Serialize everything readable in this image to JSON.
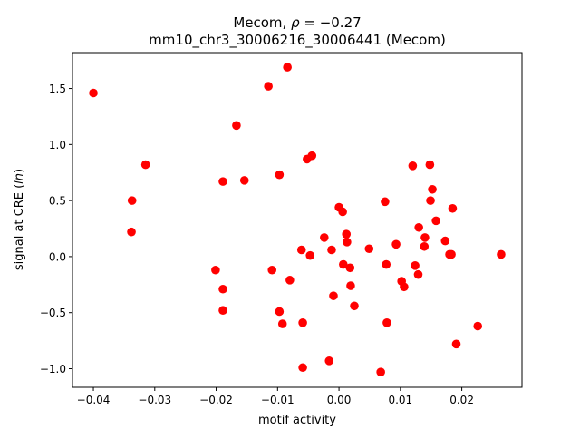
{
  "chart_data": {
    "type": "scatter",
    "title_line1_prefix": "Mecom, ",
    "title_rho_symbol": "ρ",
    "title_rho_value": " = −0.27",
    "title_line2": "mm10_chr3_30006216_30006441 (Mecom)",
    "xlabel": "motif activity",
    "ylabel_prefix": "signal at CRE (",
    "ylabel_italic": "ln",
    "ylabel_suffix": ")",
    "xlim": [
      -0.0434,
      0.0298
    ],
    "ylim": [
      -1.166,
      1.82
    ],
    "xticks": [
      -0.04,
      -0.03,
      -0.02,
      -0.01,
      0.0,
      0.01,
      0.02
    ],
    "xtick_labels": [
      "−0.04",
      "−0.03",
      "−0.02",
      "−0.01",
      "0.00",
      "0.01",
      "0.02"
    ],
    "yticks": [
      -1.0,
      -0.5,
      0.0,
      0.5,
      1.0,
      1.5
    ],
    "ytick_labels": [
      "−1.0",
      "−0.5",
      "0.0",
      "0.5",
      "1.0",
      "1.5"
    ],
    "grid": false,
    "marker_color": "#ff0000",
    "points": [
      [
        -0.04,
        1.46
      ],
      [
        -0.0337,
        0.5
      ],
      [
        -0.0338,
        0.22
      ],
      [
        -0.0315,
        0.82
      ],
      [
        -0.0201,
        -0.12
      ],
      [
        -0.0189,
        0.67
      ],
      [
        -0.0189,
        -0.29
      ],
      [
        -0.0189,
        -0.48
      ],
      [
        -0.0167,
        1.17
      ],
      [
        -0.0154,
        0.68
      ],
      [
        -0.0115,
        1.52
      ],
      [
        -0.0109,
        -0.12
      ],
      [
        -0.0097,
        0.73
      ],
      [
        -0.0097,
        -0.49
      ],
      [
        -0.0092,
        -0.6
      ],
      [
        -0.0084,
        1.69
      ],
      [
        -0.008,
        -0.21
      ],
      [
        -0.0061,
        0.06
      ],
      [
        -0.0059,
        -0.59
      ],
      [
        -0.0059,
        -0.99
      ],
      [
        -0.0052,
        0.87
      ],
      [
        -0.0044,
        0.9
      ],
      [
        -0.0047,
        0.01
      ],
      [
        -0.0024,
        0.17
      ],
      [
        -0.0016,
        -0.93
      ],
      [
        -0.0012,
        0.06
      ],
      [
        -0.0009,
        -0.35
      ],
      [
        0.0,
        0.44
      ],
      [
        0.0006,
        0.4
      ],
      [
        0.0007,
        -0.07
      ],
      [
        0.0012,
        0.2
      ],
      [
        0.0013,
        0.13
      ],
      [
        0.0018,
        -0.1
      ],
      [
        0.0019,
        -0.26
      ],
      [
        0.0025,
        -0.44
      ],
      [
        0.0049,
        0.07
      ],
      [
        0.0068,
        -1.03
      ],
      [
        0.0075,
        0.49
      ],
      [
        0.0077,
        -0.07
      ],
      [
        0.0078,
        -0.59
      ],
      [
        0.0093,
        0.11
      ],
      [
        0.0102,
        -0.22
      ],
      [
        0.0106,
        -0.27
      ],
      [
        0.012,
        0.81
      ],
      [
        0.0124,
        -0.08
      ],
      [
        0.0129,
        -0.16
      ],
      [
        0.013,
        0.26
      ],
      [
        0.014,
        0.17
      ],
      [
        0.0139,
        0.09
      ],
      [
        0.0148,
        0.82
      ],
      [
        0.0149,
        0.5
      ],
      [
        0.0152,
        0.6
      ],
      [
        0.0158,
        0.32
      ],
      [
        0.0173,
        0.14
      ],
      [
        0.018,
        0.02
      ],
      [
        0.0183,
        0.02
      ],
      [
        0.0185,
        0.43
      ],
      [
        0.0191,
        -0.78
      ],
      [
        0.0226,
        -0.62
      ],
      [
        0.0264,
        0.02
      ]
    ]
  }
}
